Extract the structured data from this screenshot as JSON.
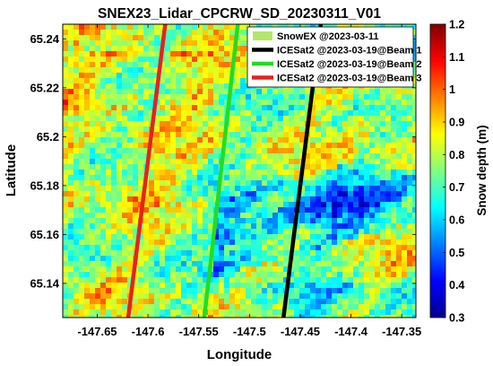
{
  "chart_data": {
    "type": "heatmap",
    "title": "SNEX23_Lidar_CPCRW_SD_20230311_V01",
    "xlabel": "Longitude",
    "ylabel": "Latitude",
    "xlim": [
      -147.684,
      -147.336
    ],
    "ylim": [
      65.126,
      65.246
    ],
    "xticks": [
      -147.65,
      -147.6,
      -147.55,
      -147.5,
      -147.45,
      -147.4,
      -147.35
    ],
    "xtick_labels": [
      "-147.65",
      "-147.6",
      "-147.55",
      "-147.5",
      "-147.45",
      "-147.4",
      "-147.35"
    ],
    "yticks": [
      65.14,
      65.16,
      65.18,
      65.2,
      65.22,
      65.24
    ],
    "ytick_labels": [
      "65.14",
      "65.16",
      "65.18",
      "65.2",
      "65.22",
      "65.24"
    ],
    "colorbar": {
      "label": "Snow depth (m)",
      "range": [
        0.3,
        1.2
      ],
      "ticks": [
        0.3,
        0.4,
        0.5,
        0.6,
        0.7,
        0.8,
        0.9,
        1.0,
        1.1,
        1.2
      ],
      "tick_labels": [
        "0.3",
        "0.4",
        "0.5",
        "0.6",
        "0.7",
        "0.8",
        "0.9",
        "1",
        "1.1",
        "1.2"
      ],
      "colormap": "jet"
    },
    "legend": {
      "position": "top-right",
      "entries": [
        {
          "label": "SnowEX @2023-03-11",
          "color": "#b5e66a",
          "style": "patch"
        },
        {
          "label": "ICESat2 @2023-03-19@Beam 1",
          "color": "#000000",
          "style": "line"
        },
        {
          "label": "ICESat2 @2023-03-19@Beam 2",
          "color": "#22dd22",
          "style": "line"
        },
        {
          "label": "ICESat2 @2023-03-19@Beam 3",
          "color": "#e52222",
          "style": "line"
        }
      ]
    },
    "series": [
      {
        "name": "ICESat2 @2023-03-19@Beam 1",
        "color": "#000000",
        "x": [
          -147.4665,
          -147.4298
        ],
        "y": [
          65.126,
          65.246
        ]
      },
      {
        "name": "ICESat2 @2023-03-19@Beam 2",
        "color": "#22dd22",
        "x": [
          -147.5445,
          -147.5115
        ],
        "y": [
          65.126,
          65.246
        ]
      },
      {
        "name": "ICESat2 @2023-03-19@Beam 3",
        "color": "#e52222",
        "x": [
          -147.6195,
          -147.583
        ],
        "y": [
          65.126,
          65.246
        ]
      }
    ],
    "grid": false
  }
}
